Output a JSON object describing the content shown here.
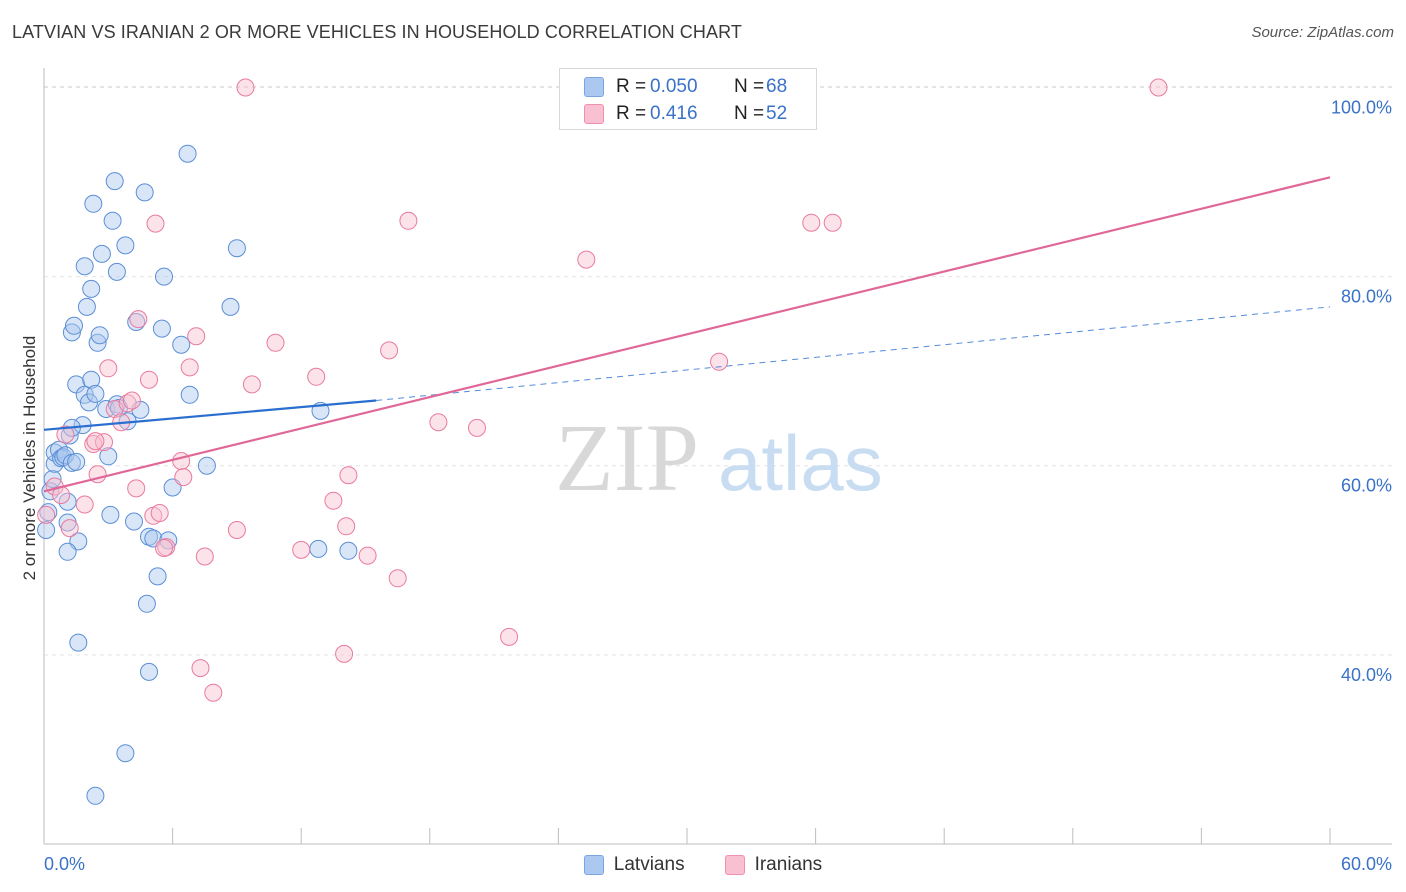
{
  "header": {
    "title": "LATVIAN VS IRANIAN 2 OR MORE VEHICLES IN HOUSEHOLD CORRELATION CHART",
    "source": "Source: ZipAtlas.com"
  },
  "watermark": {
    "zip": "ZIP",
    "atlas": "atlas"
  },
  "legend_top": [
    {
      "r_label": "R =",
      "r_value": "0.050",
      "n_label": "N =",
      "n_value": "68",
      "color": "#aac8f0",
      "border": "#7aa6e0"
    },
    {
      "r_label": "R =",
      "r_value": "0.416",
      "n_label": "N =",
      "n_value": "52",
      "color": "#f8c0d0",
      "border": "#f090b0"
    }
  ],
  "legend_bottom": [
    {
      "label": "Latvians",
      "color": "#aac8f0",
      "border": "#7aa6e0"
    },
    {
      "label": "Iranians",
      "color": "#f8c0d0",
      "border": "#f090b0"
    }
  ],
  "chart_data": {
    "type": "scatter",
    "title": "LATVIAN VS IRANIAN 2 OR MORE VEHICLES IN HOUSEHOLD CORRELATION CHART",
    "xlabel": "",
    "ylabel": "2 or more Vehicles in Household",
    "xlim": [
      0,
      60
    ],
    "ylim": [
      20,
      101
    ],
    "x_tick_labels": [
      "0.0%",
      "60.0%"
    ],
    "y_ticks": [
      40,
      60,
      80,
      100
    ],
    "y_tick_labels": [
      "40.0%",
      "60.0%",
      "80.0%",
      "100.0%"
    ],
    "series": [
      {
        "name": "Latvians",
        "color": "#5b8fd6",
        "fill": "rgba(170,200,240,0.45)",
        "trend": {
          "x0": 0,
          "y0": 63.8,
          "x1": 15.5,
          "y1": 66.9,
          "dash_to_x": 60,
          "dash_to_y": 76.8,
          "color": "#2a6fd0"
        },
        "points": [
          [
            0.1,
            53.2
          ],
          [
            0.2,
            55.1
          ],
          [
            0.3,
            57.3
          ],
          [
            0.4,
            58.6
          ],
          [
            0.5,
            60.2
          ],
          [
            0.5,
            61.4
          ],
          [
            0.7,
            61.7
          ],
          [
            0.8,
            60.8
          ],
          [
            0.9,
            60.9
          ],
          [
            1.0,
            61.1
          ],
          [
            1.1,
            56.2
          ],
          [
            1.1,
            54.0
          ],
          [
            1.2,
            63.2
          ],
          [
            1.3,
            60.3
          ],
          [
            1.3,
            74.1
          ],
          [
            1.4,
            74.8
          ],
          [
            1.5,
            68.6
          ],
          [
            1.6,
            52.0
          ],
          [
            1.6,
            41.3
          ],
          [
            1.8,
            64.3
          ],
          [
            1.9,
            81.1
          ],
          [
            1.9,
            67.5
          ],
          [
            2.0,
            76.8
          ],
          [
            2.1,
            66.7
          ],
          [
            2.2,
            69.1
          ],
          [
            2.2,
            78.7
          ],
          [
            2.3,
            87.7
          ],
          [
            2.4,
            67.6
          ],
          [
            2.5,
            73.0
          ],
          [
            2.6,
            73.8
          ],
          [
            2.7,
            82.4
          ],
          [
            2.9,
            66.0
          ],
          [
            3.0,
            61.0
          ],
          [
            3.1,
            54.8
          ],
          [
            3.2,
            85.9
          ],
          [
            3.3,
            90.1
          ],
          [
            3.4,
            80.5
          ],
          [
            3.4,
            66.5
          ],
          [
            3.5,
            66.1
          ],
          [
            3.8,
            83.3
          ],
          [
            3.9,
            64.7
          ],
          [
            4.2,
            54.1
          ],
          [
            4.3,
            75.2
          ],
          [
            4.5,
            65.9
          ],
          [
            4.7,
            88.9
          ],
          [
            4.8,
            45.4
          ],
          [
            4.9,
            52.5
          ],
          [
            5.1,
            52.3
          ],
          [
            5.3,
            48.3
          ],
          [
            5.5,
            74.5
          ],
          [
            5.6,
            80.0
          ],
          [
            5.8,
            52.1
          ],
          [
            6.0,
            57.7
          ],
          [
            6.4,
            72.8
          ],
          [
            6.7,
            93.0
          ],
          [
            6.8,
            67.5
          ],
          [
            7.6,
            60.0
          ],
          [
            8.7,
            76.8
          ],
          [
            9.0,
            83.0
          ],
          [
            12.9,
            65.8
          ],
          [
            12.8,
            51.2
          ],
          [
            14.2,
            51.0
          ],
          [
            1.1,
            50.9
          ],
          [
            4.9,
            38.2
          ],
          [
            3.8,
            29.6
          ],
          [
            2.4,
            25.1
          ],
          [
            1.3,
            64.0
          ],
          [
            1.5,
            60.4
          ]
        ]
      },
      {
        "name": "Iranians",
        "color": "#e87ba0",
        "fill": "rgba(248,192,208,0.45)",
        "trend": {
          "x0": 0,
          "y0": 57.3,
          "x1": 60,
          "y1": 90.5,
          "color": "#e06898"
        },
        "points": [
          [
            0.1,
            54.8
          ],
          [
            0.5,
            57.8
          ],
          [
            0.8,
            56.9
          ],
          [
            1.0,
            63.3
          ],
          [
            1.2,
            53.4
          ],
          [
            1.9,
            55.9
          ],
          [
            2.3,
            62.3
          ],
          [
            2.5,
            59.1
          ],
          [
            2.8,
            62.5
          ],
          [
            3.0,
            70.3
          ],
          [
            3.3,
            66.0
          ],
          [
            3.6,
            64.6
          ],
          [
            3.9,
            66.6
          ],
          [
            4.1,
            66.9
          ],
          [
            4.3,
            57.6
          ],
          [
            4.4,
            75.5
          ],
          [
            4.9,
            69.1
          ],
          [
            5.1,
            54.7
          ],
          [
            5.2,
            85.6
          ],
          [
            5.4,
            55.0
          ],
          [
            5.7,
            51.4
          ],
          [
            6.4,
            60.5
          ],
          [
            6.5,
            58.8
          ],
          [
            6.8,
            70.4
          ],
          [
            7.1,
            73.7
          ],
          [
            7.3,
            38.6
          ],
          [
            7.5,
            50.4
          ],
          [
            7.9,
            36.0
          ],
          [
            9.0,
            53.2
          ],
          [
            9.4,
            100.0
          ],
          [
            9.7,
            68.6
          ],
          [
            10.8,
            73.0
          ],
          [
            12.0,
            51.1
          ],
          [
            12.7,
            69.4
          ],
          [
            13.5,
            56.3
          ],
          [
            14.0,
            40.1
          ],
          [
            14.1,
            53.6
          ],
          [
            14.2,
            59.0
          ],
          [
            15.1,
            50.5
          ],
          [
            16.1,
            72.2
          ],
          [
            16.5,
            48.1
          ],
          [
            17.0,
            85.9
          ],
          [
            18.4,
            64.6
          ],
          [
            20.2,
            64.0
          ],
          [
            21.7,
            41.9
          ],
          [
            25.3,
            81.8
          ],
          [
            31.5,
            71.0
          ],
          [
            35.8,
            85.7
          ],
          [
            36.8,
            85.7
          ],
          [
            52.0,
            100.0
          ],
          [
            5.6,
            51.3
          ],
          [
            2.4,
            62.6
          ]
        ]
      }
    ]
  }
}
